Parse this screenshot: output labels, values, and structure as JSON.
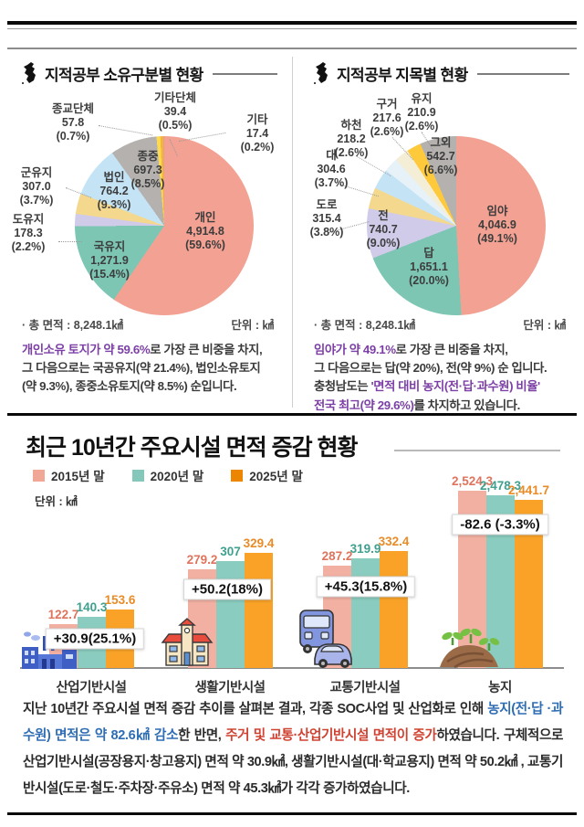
{
  "colors": {
    "purple": "#7b3fa5",
    "blue": "#2e6db4",
    "red": "#cf4231"
  },
  "chart_data": [
    {
      "type": "pie",
      "title": "지적공부 소유구분별 현황",
      "total_label": "· 총 면적 : 8,248.1㎢",
      "unit_label": "단위 : ㎢",
      "slices": [
        {
          "label": "개인",
          "value": "4,914.8",
          "pct": "(59.6%)",
          "p": 59.6,
          "color": "#f2a192"
        },
        {
          "label": "국유지",
          "value": "1,271.9",
          "pct": "(15.4%)",
          "p": 15.4,
          "color": "#7cc6b3"
        },
        {
          "label": "도유지",
          "value": "178.3",
          "pct": "(2.2%)",
          "p": 2.2,
          "color": "#cfcbe9"
        },
        {
          "label": "군유지",
          "value": "307.0",
          "pct": "(3.7%)",
          "p": 3.7,
          "color": "#f4d88d"
        },
        {
          "label": "법인",
          "value": "764.2",
          "pct": "(9.3%)",
          "p": 9.3,
          "color": "#c4e4f6"
        },
        {
          "label": "종중",
          "value": "697.3",
          "pct": "(8.5%)",
          "p": 8.5,
          "color": "#b4b1ae"
        },
        {
          "label": "종교단체",
          "value": "57.8",
          "pct": "(0.7%)",
          "p": 0.7,
          "color": "#ffd94f"
        },
        {
          "label": "기타단체",
          "value": "39.4",
          "pct": "(0.5%)",
          "p": 0.5,
          "color": "#f0b63c"
        },
        {
          "label": "기타",
          "value": "17.4",
          "pct": "(0.2%)",
          "p": 0.2,
          "color": "#e89d8d"
        }
      ]
    },
    {
      "type": "pie",
      "title": "지적공부 지목별 현황",
      "total_label": "· 총 면적 : 8,248.1㎢",
      "unit_label": "단위 : ㎢",
      "slices": [
        {
          "label": "임야",
          "value": "4,046.9",
          "pct": "(49.1%)",
          "p": 49.1,
          "color": "#f2a192"
        },
        {
          "label": "답",
          "value": "1,651.1",
          "pct": "(20.0%)",
          "p": 20.0,
          "color": "#7cc6b3"
        },
        {
          "label": "전",
          "value": "740.7",
          "pct": "(9.0%)",
          "p": 9.0,
          "color": "#cfcbe9"
        },
        {
          "label": "도로",
          "value": "315.4",
          "pct": "(3.8%)",
          "p": 3.8,
          "color": "#f4d88d"
        },
        {
          "label": "대",
          "value": "304.6",
          "pct": "(3.7%)",
          "p": 3.7,
          "color": "#c4e4f6"
        },
        {
          "label": "하천",
          "value": "218.2",
          "pct": "(2.6%)",
          "p": 2.6,
          "color": "#e7f1f8"
        },
        {
          "label": "구거",
          "value": "217.6",
          "pct": "(2.6%)",
          "p": 2.6,
          "color": "#f5eed6"
        },
        {
          "label": "유지",
          "value": "210.9",
          "pct": "(2.6%)",
          "p": 2.6,
          "color": "#ffc93c"
        },
        {
          "label": "그외",
          "value": "542.7",
          "pct": "(6.6%)",
          "p": 6.6,
          "color": "#b4b1ae"
        }
      ]
    },
    {
      "type": "bar",
      "title": "최근 10년간 주요시설 면적 증감 현황",
      "unit_label": "단위 : ㎢",
      "series": [
        {
          "name": "2015년 말",
          "bar_color": "#f2b0a2",
          "label_color": "#e0735c",
          "legend_color": "#f0a796"
        },
        {
          "name": "2020년 말",
          "bar_color": "#8accbf",
          "label_color": "#3fa08e",
          "legend_color": "#85c7ba"
        },
        {
          "name": "2025년 말",
          "bar_color": "#f9a227",
          "label_color": "#e98b26",
          "legend_color": "#ec8600"
        }
      ],
      "categories": [
        "산업기반시설",
        "생활기반시설",
        "교통기반시설",
        "농지"
      ],
      "values": [
        [
          122.7,
          140.3,
          153.6
        ],
        [
          279.2,
          307,
          329.4
        ],
        [
          287.2,
          319.9,
          332.4
        ],
        [
          2524.3,
          2478.3,
          2441.7
        ]
      ],
      "value_labels": [
        [
          "122.7",
          "140.3",
          "153.6"
        ],
        [
          "279.2",
          "307",
          "329.4"
        ],
        [
          "287.2",
          "319.9",
          "332.4"
        ],
        [
          "2,524.3",
          "2,478.3",
          "2,441.7"
        ]
      ],
      "deltas": [
        "+30.9(25.1%)",
        "+50.2(18%)",
        "+45.3(15.8%)",
        "-82.6 (-3.3%)"
      ]
    }
  ],
  "summaries": [
    {
      "segments": [
        {
          "text": "개인소유 토지가 약 59.6%",
          "style": "purple"
        },
        {
          "text": "로 가장 큰 비중을 차지,\n그 다음으로는 국공유지(약 21.4%), 법인소유토지\n(약 9.3%), 종중소유토지(약 8.5%) 순입니다.",
          "style": "normal"
        }
      ]
    },
    {
      "segments": [
        {
          "text": "임야가 약 49.1%",
          "style": "purple"
        },
        {
          "text": "로 가장 큰 비중을 차지,\n그 다음으로는 답(약 20%), 전(약 9%) 순 입니다.\n충청남도는 ",
          "style": "normal"
        },
        {
          "text": "'면적 대비 농지(전·답·과수원) 비율'",
          "style": "purple"
        },
        {
          "text": "\n",
          "style": "normal"
        },
        {
          "text": "전국 최고(약 29.6%)",
          "style": "purple"
        },
        {
          "text": "를 차지하고 있습니다.",
          "style": "normal"
        }
      ]
    }
  ],
  "paragraph": {
    "segments": [
      {
        "text": "지난 10년간 주요시설 면적 증감 추이를 살펴본 결과, 각종 SOC사업 및 산업화로 인해 ",
        "style": "normal"
      },
      {
        "text": "농지(전·답 ·과수원) 면적은 약 82.6㎢  감소",
        "style": "blue"
      },
      {
        "text": "한 반면, ",
        "style": "normal"
      },
      {
        "text": "주거 및 교통·산업기반시설 면적이 증가",
        "style": "red"
      },
      {
        "text": "하였습니다. 구체적으로 산업기반시설(공장용지·창고용지) 면적 약 30.9㎢, 생활기반시설(대·학교용지) 면적 약 50.2㎢ , 교통기반시설(도로·철도·주차장·주유소) 면적 약 45.3㎢가 각각 증가하였습니다.",
        "style": "normal"
      }
    ]
  }
}
